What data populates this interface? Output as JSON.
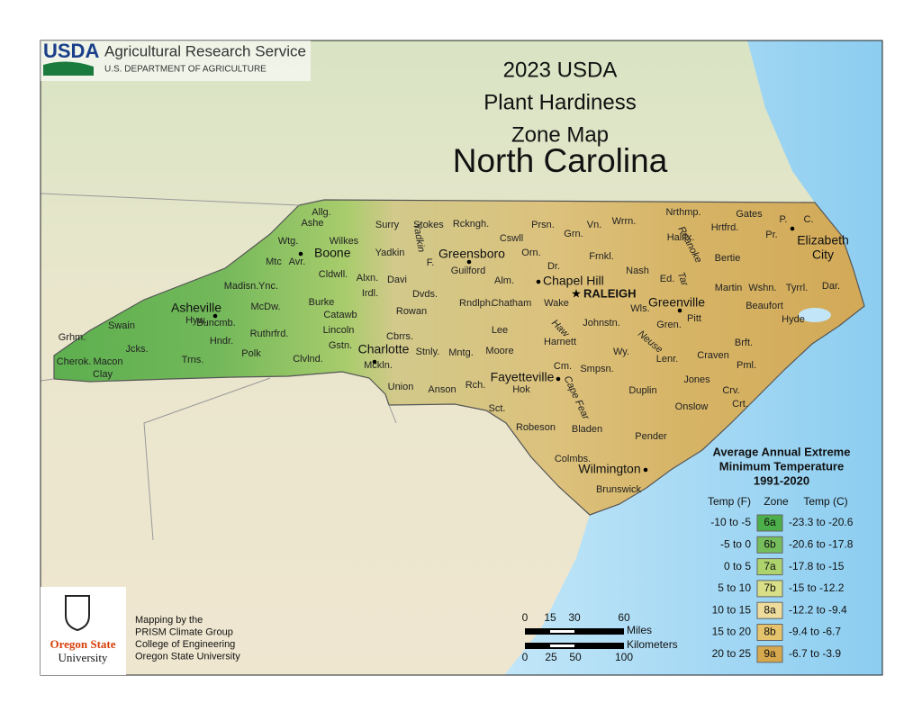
{
  "header": {
    "agency_logo": "USDA",
    "agency": "Agricultural Research Service",
    "department": "U.S. DEPARTMENT OF AGRICULTURE"
  },
  "title": {
    "lines": [
      "2023 USDA",
      "Plant Hardiness",
      "Zone Map"
    ],
    "state": "North Carolina"
  },
  "map": {
    "counties": [
      "Allg.",
      "Ashe",
      "Surry",
      "Stokes",
      "Rckngh.",
      "Prsn.",
      "Wrrn.",
      "Nrthmp.",
      "Gates",
      "Hrtfrd.",
      "P.",
      "C.",
      "Pr.",
      "Grn.",
      "Cswll",
      "Wtg.",
      "Wilkes",
      "Yadkin",
      "F.",
      "Guilford",
      "Orn.",
      "Halifx.",
      "Bertie",
      "Frnkl.",
      "Dr.",
      "Mtc",
      "Avr.",
      "Madisn.",
      "Ync.",
      "Cldwll.",
      "Alxn.",
      "Davi",
      "Nash",
      "Ed.",
      "Irdl.",
      "Dvds.",
      "Rndlph.",
      "Alm.",
      "Chatham",
      "Wake",
      "Martin",
      "Wshn.",
      "Tyrrl.",
      "Dar.",
      "McDw.",
      "Burke",
      "Catawb",
      "Rowan",
      "Wls.",
      "Pitt",
      "Beaufort",
      "Hyde",
      "Johnstn.",
      "Lee",
      "Hyw.",
      "Buncmb.",
      "Swain",
      "Grhm.",
      "Jcks.",
      "Hndr.",
      "Ruthrfrd.",
      "Lincoln",
      "Cbrrs.",
      "Harnett",
      "Gren.",
      "Lenr.",
      "Brft.",
      "Wy.",
      "Cherok.",
      "Macon",
      "Trns.",
      "Polk",
      "Clvlnd.",
      "Gstn.",
      "Stnly.",
      "Mntg.",
      "Moore",
      "Craven",
      "Pml.",
      "Clay",
      "Mckln.",
      "Cm.",
      "Smpsn.",
      "Union",
      "Anson",
      "Rch.",
      "Hok",
      "Duplin",
      "Jones",
      "Crv.",
      "Crt.",
      "Sct.",
      "Onslow",
      "Robeson",
      "Bladen",
      "Pender",
      "Colmbs.",
      "Brunswick",
      "Vn."
    ],
    "rivers": [
      "Yadkin",
      "Roanoke",
      "Tar",
      "Haw",
      "Neuse",
      "Cape Fear"
    ],
    "cities": [
      {
        "lines": [
          "Boone"
        ]
      },
      {
        "lines": [
          "Greensboro"
        ]
      },
      {
        "lines": [
          "Chapel Hill"
        ]
      },
      {
        "lines": [
          "Greenville"
        ]
      },
      {
        "lines": [
          "Elizabeth",
          "City"
        ]
      },
      {
        "lines": [
          "Asheville"
        ]
      },
      {
        "lines": [
          "Charlotte"
        ]
      },
      {
        "lines": [
          "Fayetteville"
        ]
      },
      {
        "lines": [
          "Wilmington"
        ]
      }
    ],
    "capital": "RALEIGH"
  },
  "legend": {
    "title_lines": [
      "Average Annual Extreme",
      "Minimum Temperature",
      "1991-2020"
    ],
    "headers": [
      "Temp (F)",
      "Zone",
      "Temp (C)"
    ],
    "rows": [
      {
        "temp_f": "-10 to -5",
        "zone": "6a",
        "temp_c": "-23.3 to -20.6",
        "color": "#4caf4a"
      },
      {
        "temp_f": "-5 to 0",
        "zone": "6b",
        "temp_c": "-20.6 to -17.8",
        "color": "#76bd5c"
      },
      {
        "temp_f": "0 to 5",
        "zone": "7a",
        "temp_c": "-17.8 to -15",
        "color": "#acd36c"
      },
      {
        "temp_f": "5 to 10",
        "zone": "7b",
        "temp_c": "-15 to -12.2",
        "color": "#d8df86"
      },
      {
        "temp_f": "10 to 15",
        "zone": "8a",
        "temp_c": "-12.2 to -9.4",
        "color": "#eedc9c"
      },
      {
        "temp_f": "15 to 20",
        "zone": "8b",
        "temp_c": "-9.4 to -6.7",
        "color": "#e4c36c"
      },
      {
        "temp_f": "20 to 25",
        "zone": "9a",
        "temp_c": "-6.7 to -3.9",
        "color": "#d6a84e"
      }
    ]
  },
  "scale_bar": {
    "miles_ticks": [
      "0",
      "15",
      "30",
      "60"
    ],
    "miles_label": "Miles",
    "km_label": "Kilometers",
    "km_ticks": [
      "0",
      "25",
      "50",
      "100"
    ]
  },
  "credits": {
    "lines": [
      "Mapping by the",
      "PRISM Climate Group",
      "College of Engineering",
      "Oregon State University"
    ]
  },
  "logo": {
    "lines": [
      "Oregon State",
      "University"
    ]
  }
}
